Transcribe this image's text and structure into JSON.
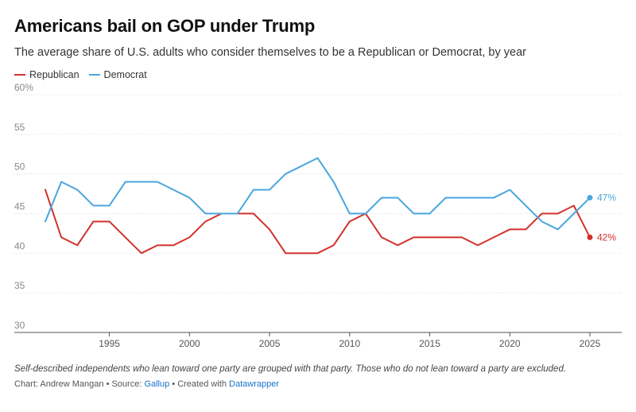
{
  "title": "Americans bail on GOP under Trump",
  "subtitle": "The average share of U.S. adults who consider themselves to be a Republican or Democrat, by year",
  "footnote": "Self-described independents who lean toward one party are grouped with that party. Those who do not lean toward a party are excluded.",
  "credits": {
    "prefix": "Chart: Andrew Mangan • Source: ",
    "source": "Gallup",
    "middle": " • Created with ",
    "tool": "Datawrapper"
  },
  "colors": {
    "republican": "#d1312b",
    "democrat": "#4aa6de",
    "grid": "#dddddd"
  },
  "chart_data": {
    "type": "line",
    "title": "Americans bail on GOP under Trump",
    "subtitle": "The average share of U.S. adults who consider themselves to be a Republican or Democrat, by year",
    "x": [
      1991,
      1992,
      1993,
      1994,
      1995,
      1996,
      1997,
      1998,
      1999,
      2000,
      2001,
      2002,
      2003,
      2004,
      2005,
      2006,
      2007,
      2008,
      2009,
      2010,
      2011,
      2012,
      2013,
      2014,
      2015,
      2016,
      2017,
      2018,
      2019,
      2020,
      2021,
      2022,
      2023,
      2024,
      2025
    ],
    "series": [
      {
        "name": "Republican",
        "values": [
          48,
          42,
          41,
          44,
          44,
          42,
          40,
          41,
          41,
          42,
          44,
          45,
          45,
          45,
          43,
          40,
          40,
          40,
          41,
          44,
          45,
          42,
          41,
          42,
          42,
          42,
          42,
          41,
          42,
          43,
          43,
          45,
          45,
          46,
          42
        ],
        "end_label": "42%"
      },
      {
        "name": "Democrat",
        "values": [
          44,
          49,
          48,
          46,
          46,
          49,
          49,
          49,
          48,
          47,
          45,
          45,
          45,
          48,
          48,
          50,
          51,
          52,
          49,
          45,
          45,
          47,
          47,
          45,
          45,
          47,
          47,
          47,
          47,
          48,
          46,
          44,
          43,
          45,
          47
        ],
        "end_label": "47%"
      }
    ],
    "y_ticks": [
      "60%",
      "55",
      "50",
      "45",
      "40",
      "35",
      "30"
    ],
    "x_ticks": [
      "1995",
      "2000",
      "2005",
      "2010",
      "2015",
      "2020",
      "2025"
    ],
    "ylim": [
      30,
      60
    ],
    "xlim": [
      1991,
      2025
    ],
    "grid": true,
    "legend": "top-left"
  }
}
